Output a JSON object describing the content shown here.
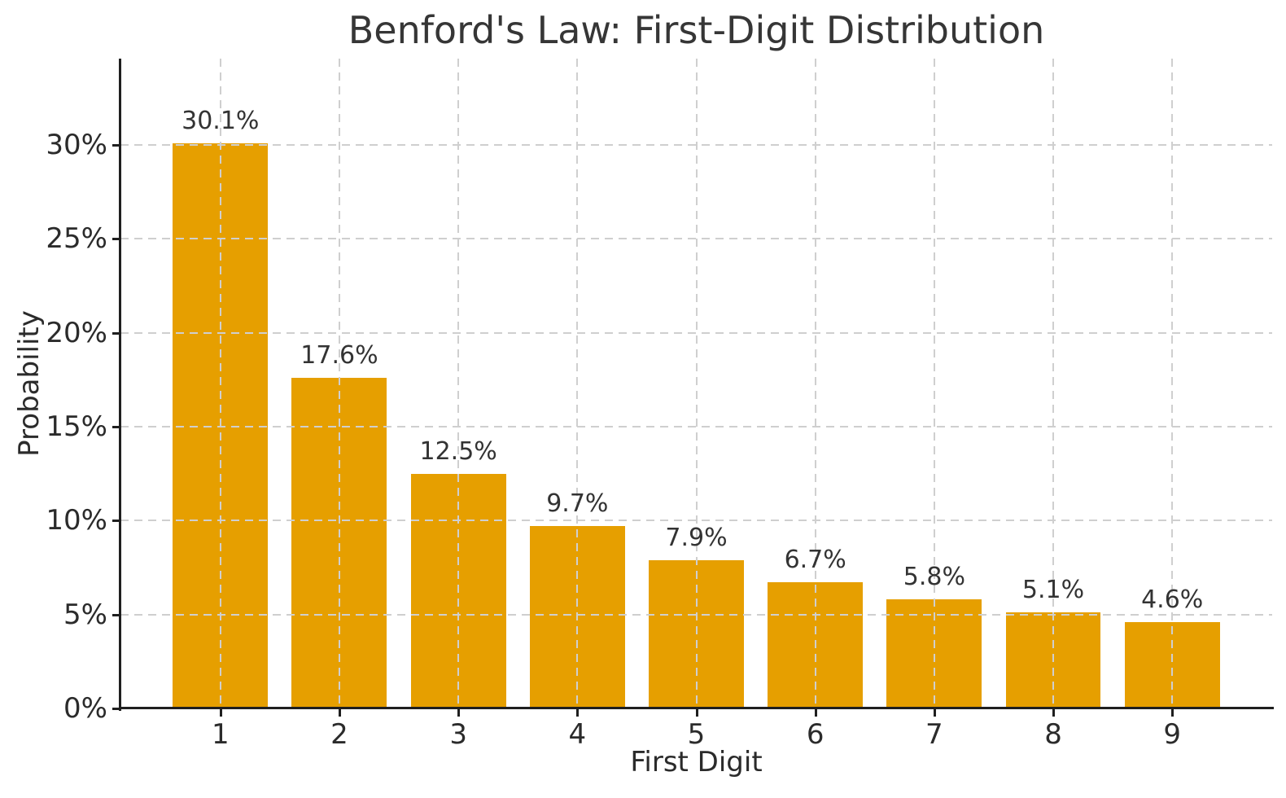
{
  "chart_data": {
    "type": "bar",
    "title": "Benford's Law: First-Digit Distribution",
    "xlabel": "First Digit",
    "ylabel": "Probability",
    "categories": [
      "1",
      "2",
      "3",
      "4",
      "5",
      "6",
      "7",
      "8",
      "9"
    ],
    "values": [
      30.1,
      17.6,
      12.5,
      9.7,
      7.9,
      6.7,
      5.8,
      5.1,
      4.6
    ],
    "bar_labels": [
      "30.1%",
      "17.6%",
      "12.5%",
      "9.7%",
      "7.9%",
      "6.7%",
      "5.8%",
      "5.1%",
      "4.6%"
    ],
    "yticks": [
      0,
      5,
      10,
      15,
      20,
      25,
      30
    ],
    "ytick_labels": [
      "0%",
      "5%",
      "10%",
      "15%",
      "20%",
      "25%",
      "30%"
    ],
    "ylim": [
      0,
      34.6
    ],
    "xlim": [
      0.16,
      9.84
    ],
    "bar_width": 0.8,
    "grid": true,
    "grid_style": "dashed",
    "legend": false,
    "colors": {
      "bar": "#E69F00",
      "grid": "#cfcfcf",
      "spine": "#1f1f1f",
      "title_text": "#363636",
      "tick_text": "#2b2b2b",
      "bar_label_text": "#333333"
    }
  }
}
